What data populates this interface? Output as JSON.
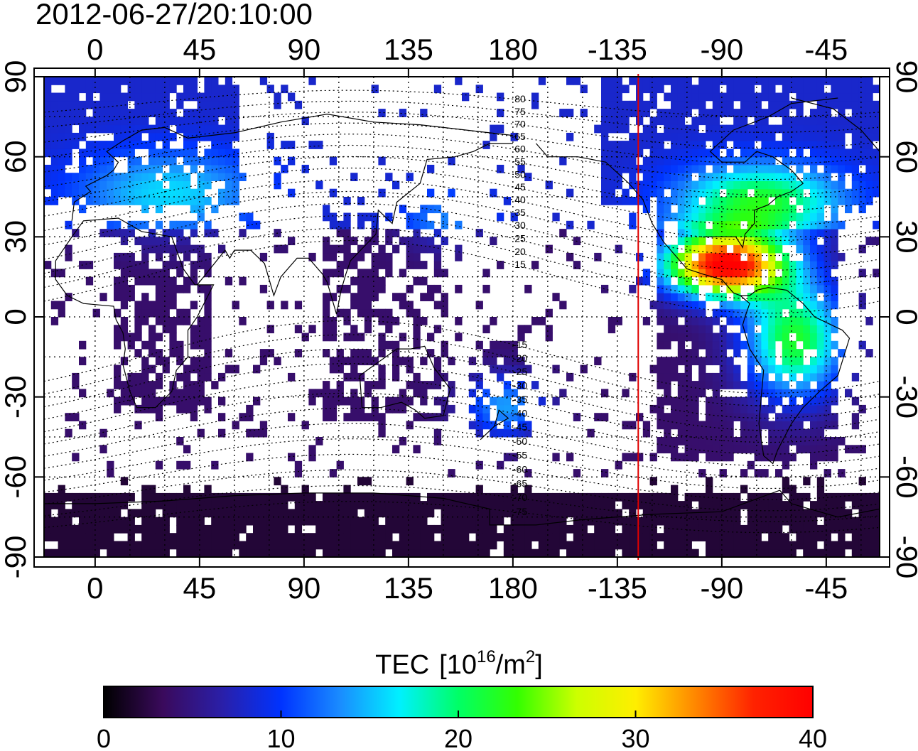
{
  "map": {
    "timestamp": "2012-06-27/20:10:00",
    "x_ticks_top": [
      "0",
      "45",
      "90",
      "135",
      "180",
      "-135",
      "-90",
      "-45"
    ],
    "x_ticks_bottom": [
      "0",
      "45",
      "90",
      "135",
      "180",
      "-135",
      "-90",
      "-45"
    ],
    "y_ticks_left": [
      "90",
      "60",
      "30",
      "0",
      "-30",
      "-60",
      "-90"
    ],
    "y_ticks_right": [
      "90",
      "60",
      "30",
      "0",
      "-30",
      "-60",
      "-90"
    ],
    "x_tick_longitudes": [
      0,
      45,
      90,
      135,
      180,
      225,
      270,
      315
    ],
    "y_tick_latitudes": [
      90,
      60,
      30,
      0,
      -30,
      -60,
      -90
    ],
    "lon_range": [
      -22,
      338
    ],
    "lat_range": [
      -90,
      90
    ],
    "grid_longitudes": [
      0,
      15,
      30,
      45,
      60,
      75,
      90,
      105,
      120,
      135,
      150,
      165,
      180,
      195,
      210,
      225,
      240,
      255,
      270,
      285,
      300,
      315,
      330
    ],
    "grid_latitudes": [
      90,
      75,
      60,
      45,
      30,
      15,
      0,
      -15,
      -30,
      -45,
      -60,
      -75
    ],
    "terminator_longitude": 234,
    "terminator_color": "#e00000",
    "magnetic_latitude_labels": [
      "80",
      "75",
      "70",
      "65",
      "60",
      "55",
      "50",
      "45",
      "40",
      "35",
      "30",
      "25",
      "20",
      "15",
      "-15",
      "-20",
      "-25",
      "-30",
      "-35",
      "-40",
      "-45",
      "-50",
      "-55",
      "-60",
      "-65",
      "-70",
      "-75"
    ]
  },
  "colorbar": {
    "title": "TEC",
    "unit_prefix": "[10",
    "unit_exp": "16",
    "unit_mid": "/m",
    "unit_exp2": "2",
    "unit_suffix": "]",
    "tick_labels": [
      "0",
      "10",
      "20",
      "30",
      "40"
    ],
    "tick_values": [
      0,
      10,
      20,
      30,
      40
    ],
    "range": [
      0,
      40
    ],
    "colors": [
      "#000000",
      "#3a0a5c",
      "#2a1fa8",
      "#0033ff",
      "#1a8cff",
      "#00f0ff",
      "#00ff66",
      "#33ff00",
      "#ccff00",
      "#ffee00",
      "#ff8800",
      "#ff2200",
      "#ff0000"
    ]
  }
}
